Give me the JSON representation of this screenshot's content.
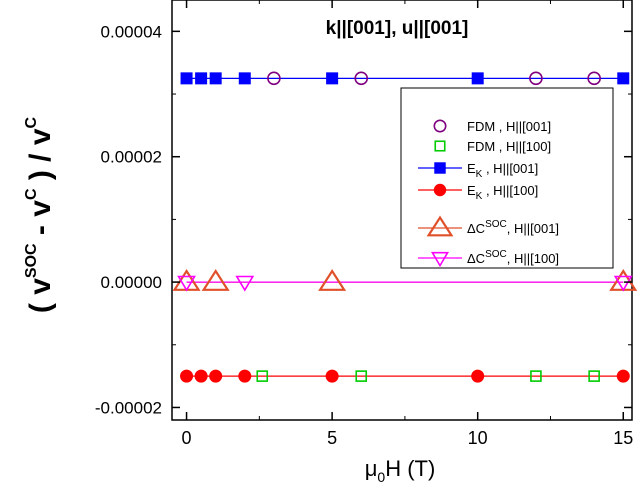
{
  "chart_data": {
    "type": "scatter",
    "title": "k||[001], u||[001]",
    "xlabel": "μ0H (T)",
    "ylabel": "( v^SOC - v^C ) / v^C",
    "xlim": [
      -0.5,
      15.3
    ],
    "ylim": [
      -2.2e-05,
      4.5e-05
    ],
    "x_ticks": [
      0,
      5,
      10,
      15
    ],
    "y_ticks": [
      -2e-05,
      0.0,
      2e-05,
      4e-05
    ],
    "x_tick_labels": [
      "0",
      "5",
      "10",
      "15"
    ],
    "y_tick_labels": [
      "-0.00002",
      "0.00000",
      "0.00002",
      "0.00004"
    ],
    "grid": false,
    "legend_position": "right",
    "series": [
      {
        "name": "FDM , H||[001]",
        "marker": "circle-open",
        "line": false,
        "color": "#800080",
        "x": [
          3,
          6,
          12,
          14
        ],
        "y": [
          3.25e-05,
          3.25e-05,
          3.25e-05,
          3.25e-05
        ]
      },
      {
        "name": "FDM , H||[100]",
        "marker": "square-open",
        "line": false,
        "color": "#00cc00",
        "x": [
          2.6,
          6,
          12,
          14
        ],
        "y": [
          -1.5e-05,
          -1.5e-05,
          -1.5e-05,
          -1.5e-05
        ]
      },
      {
        "name": "E_K , H||[001]",
        "marker": "square-filled",
        "line": true,
        "color": "#0000ff",
        "x": [
          0,
          0.5,
          1,
          2,
          5,
          10,
          15
        ],
        "y": [
          3.25e-05,
          3.25e-05,
          3.25e-05,
          3.25e-05,
          3.25e-05,
          3.25e-05,
          3.25e-05
        ]
      },
      {
        "name": "E_K , H||[100]",
        "marker": "circle-filled",
        "line": true,
        "color": "#ff0000",
        "x": [
          0,
          0.5,
          1,
          2,
          5,
          10,
          15
        ],
        "y": [
          -1.5e-05,
          -1.5e-05,
          -1.5e-05,
          -1.5e-05,
          -1.5e-05,
          -1.5e-05,
          -1.5e-05
        ]
      },
      {
        "name": "ΔC^SOC, H||[001]",
        "marker": "triangle-up-open",
        "line": true,
        "color": "#e0502a",
        "x": [
          0,
          1,
          5,
          15
        ],
        "y": [
          0,
          0,
          0,
          0
        ]
      },
      {
        "name": "ΔC^SOC, H||[100]",
        "marker": "triangle-down-open",
        "line": true,
        "color": "#ff00ff",
        "x": [
          0,
          2,
          15
        ],
        "y": [
          0,
          0,
          0
        ]
      }
    ]
  }
}
